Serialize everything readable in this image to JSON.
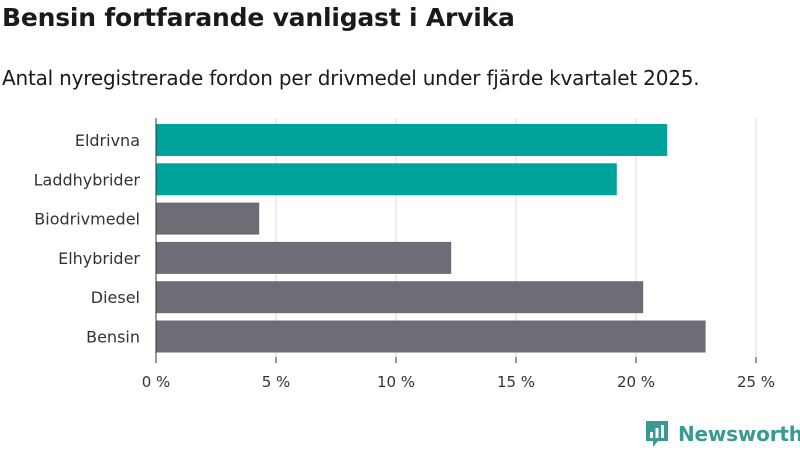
{
  "title": "Bensin fortfarande vanligast i Arvika",
  "subtitle": "Antal nyregistrerade fordon per drivmedel under fjärde kvartalet 2025.",
  "brand": "Newsworthy",
  "colors": {
    "highlight": "#00a39a",
    "default": "#6e6d75",
    "grid": "#d9d9d9",
    "axis": "#333333",
    "brand": "#3a9a92"
  },
  "chart_data": {
    "type": "bar",
    "orientation": "horizontal",
    "categories": [
      "Eldrivna",
      "Laddhybrider",
      "Biodrivmedel",
      "Elhybrider",
      "Diesel",
      "Bensin"
    ],
    "values": [
      21.3,
      19.2,
      4.3,
      12.3,
      20.3,
      22.9
    ],
    "highlighted": [
      true,
      true,
      false,
      false,
      false,
      false
    ],
    "xlim": [
      0,
      25
    ],
    "xticks": [
      0,
      5,
      10,
      15,
      20,
      25
    ],
    "xtick_labels": [
      "0 %",
      "5 %",
      "10 %",
      "15 %",
      "20 %",
      "25 %"
    ],
    "grid": true
  }
}
